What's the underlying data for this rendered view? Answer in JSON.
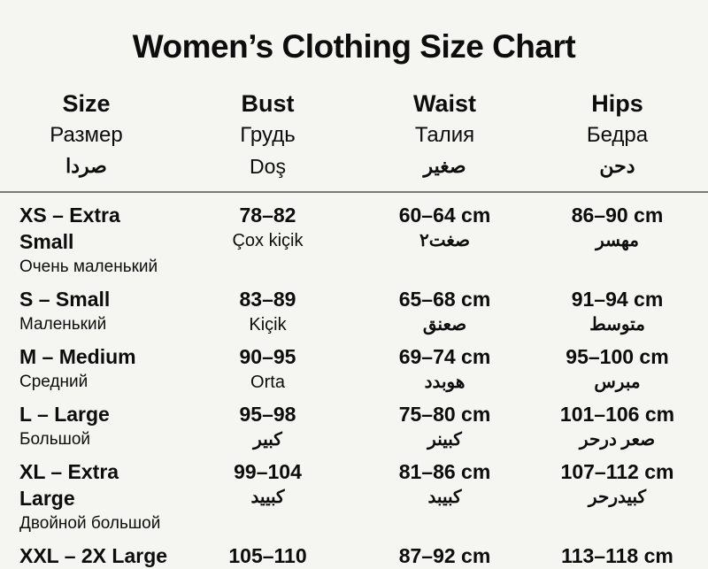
{
  "title": "Women’s Clothing Size Chart",
  "columns": [
    {
      "line1": "Size",
      "line2": "Размер",
      "line3": "صردا"
    },
    {
      "line1": "Bust",
      "line2": "Грудь",
      "line3": "Doş"
    },
    {
      "line1": "Waist",
      "line2": "Талия",
      "line3": "صغير"
    },
    {
      "line1": "Hips",
      "line2": "Бедра",
      "line3": "دحن"
    }
  ],
  "rows": [
    {
      "size": "XS – Extra Small",
      "size_sub": "Очень маленький",
      "bust": "78–82",
      "bust_sub": "Çox kiçik",
      "waist": "60–64 cm",
      "waist_sub": "صغت٢",
      "hips": "86–90 cm",
      "hips_sub": "مهسر"
    },
    {
      "size": "S – Small",
      "size_sub": "Маленький",
      "bust": "83–89",
      "bust_sub": "Kiçik",
      "waist": "65–68 cm",
      "waist_sub": "صعنق",
      "hips": "91–94 cm",
      "hips_sub": "متوسط"
    },
    {
      "size": "M – Medium",
      "size_sub": "Средний",
      "bust": "90–95",
      "bust_sub": "Orta",
      "waist": "69–74 cm",
      "waist_sub": "هوبدد",
      "hips": "95–100 cm",
      "hips_sub": "مبرس"
    },
    {
      "size": "L – Large",
      "size_sub": "Большой",
      "bust": "95–98",
      "bust_sub": "كبير",
      "waist": "75–80 cm",
      "waist_sub": "كبينر",
      "hips": "101–106 cm",
      "hips_sub": "صعر درحر"
    },
    {
      "size": "XL – Extra Large",
      "size_sub": "Двойной большой",
      "bust": "99–104",
      "bust_sub": "كبييد",
      "waist": "81–86 cm",
      "waist_sub": "كبيبد",
      "hips": "107–112 cm",
      "hips_sub": "كبيدرحر"
    },
    {
      "size": "XXL – 2X Large",
      "size_sub": "",
      "bust": "105–110",
      "bust_sub": "",
      "waist": "87–92 cm",
      "waist_sub": "",
      "hips": "113–118 cm",
      "hips_sub": ""
    }
  ],
  "chart_data": {
    "type": "table",
    "title": "Women’s Clothing Size Chart",
    "columns": [
      "Size",
      "Bust",
      "Waist",
      "Hips"
    ],
    "column_subtitles_ru": [
      "Размер",
      "Грудь",
      "Талия",
      "Бедра"
    ],
    "rows": [
      [
        "XS – Extra Small",
        "78–82",
        "60–64 cm",
        "86–90 cm"
      ],
      [
        "S – Small",
        "83–89",
        "65–68 cm",
        "91–94 cm"
      ],
      [
        "M – Medium",
        "90–95",
        "69–74 cm",
        "95–100 cm"
      ],
      [
        "L – Large",
        "95–98",
        "75–80 cm",
        "101–106 cm"
      ],
      [
        "XL – Extra Large",
        "99–104",
        "81–86 cm",
        "107–112 cm"
      ],
      [
        "XXL – 2X Large",
        "105–110",
        "87–92 cm",
        "113–118 cm"
      ]
    ],
    "row_subtitles_ru": [
      "Очень маленький",
      "Маленький",
      "Средний",
      "Большой",
      "Двойной большой",
      ""
    ]
  }
}
